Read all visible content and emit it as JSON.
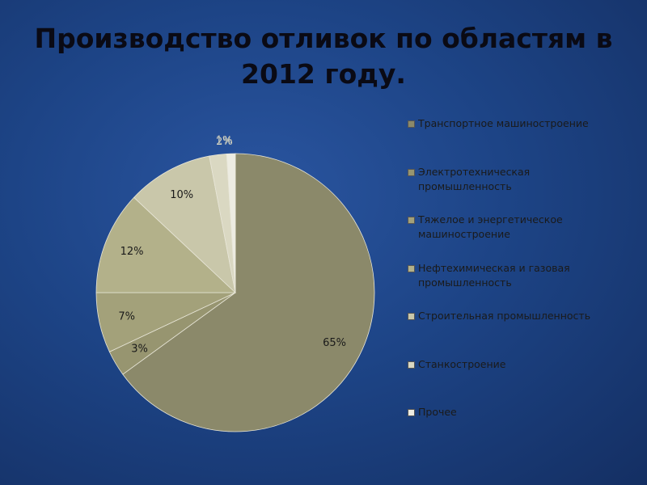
{
  "chart_data": {
    "type": "pie",
    "title": "Производство отливок по областям в 2012 году.",
    "categories": [
      "Транспортное машиностроение",
      "Электротехническая промышленность",
      "Тяжелое и энергетическое машиностроение",
      "Нефтехимическая и газовая промышленность",
      "Строительная промышленность",
      "Станкостроение",
      "Прочее"
    ],
    "values": [
      65,
      3,
      7,
      12,
      10,
      2,
      1
    ],
    "value_labels": [
      "65%",
      "3%",
      "7%",
      "12%",
      "10%",
      "2%",
      "1%"
    ],
    "colors": [
      "#8b896a",
      "#979570",
      "#a3a17a",
      "#b3b18a",
      "#c9c7aa",
      "#dad8c2",
      "#edece2"
    ],
    "legend": "right"
  }
}
